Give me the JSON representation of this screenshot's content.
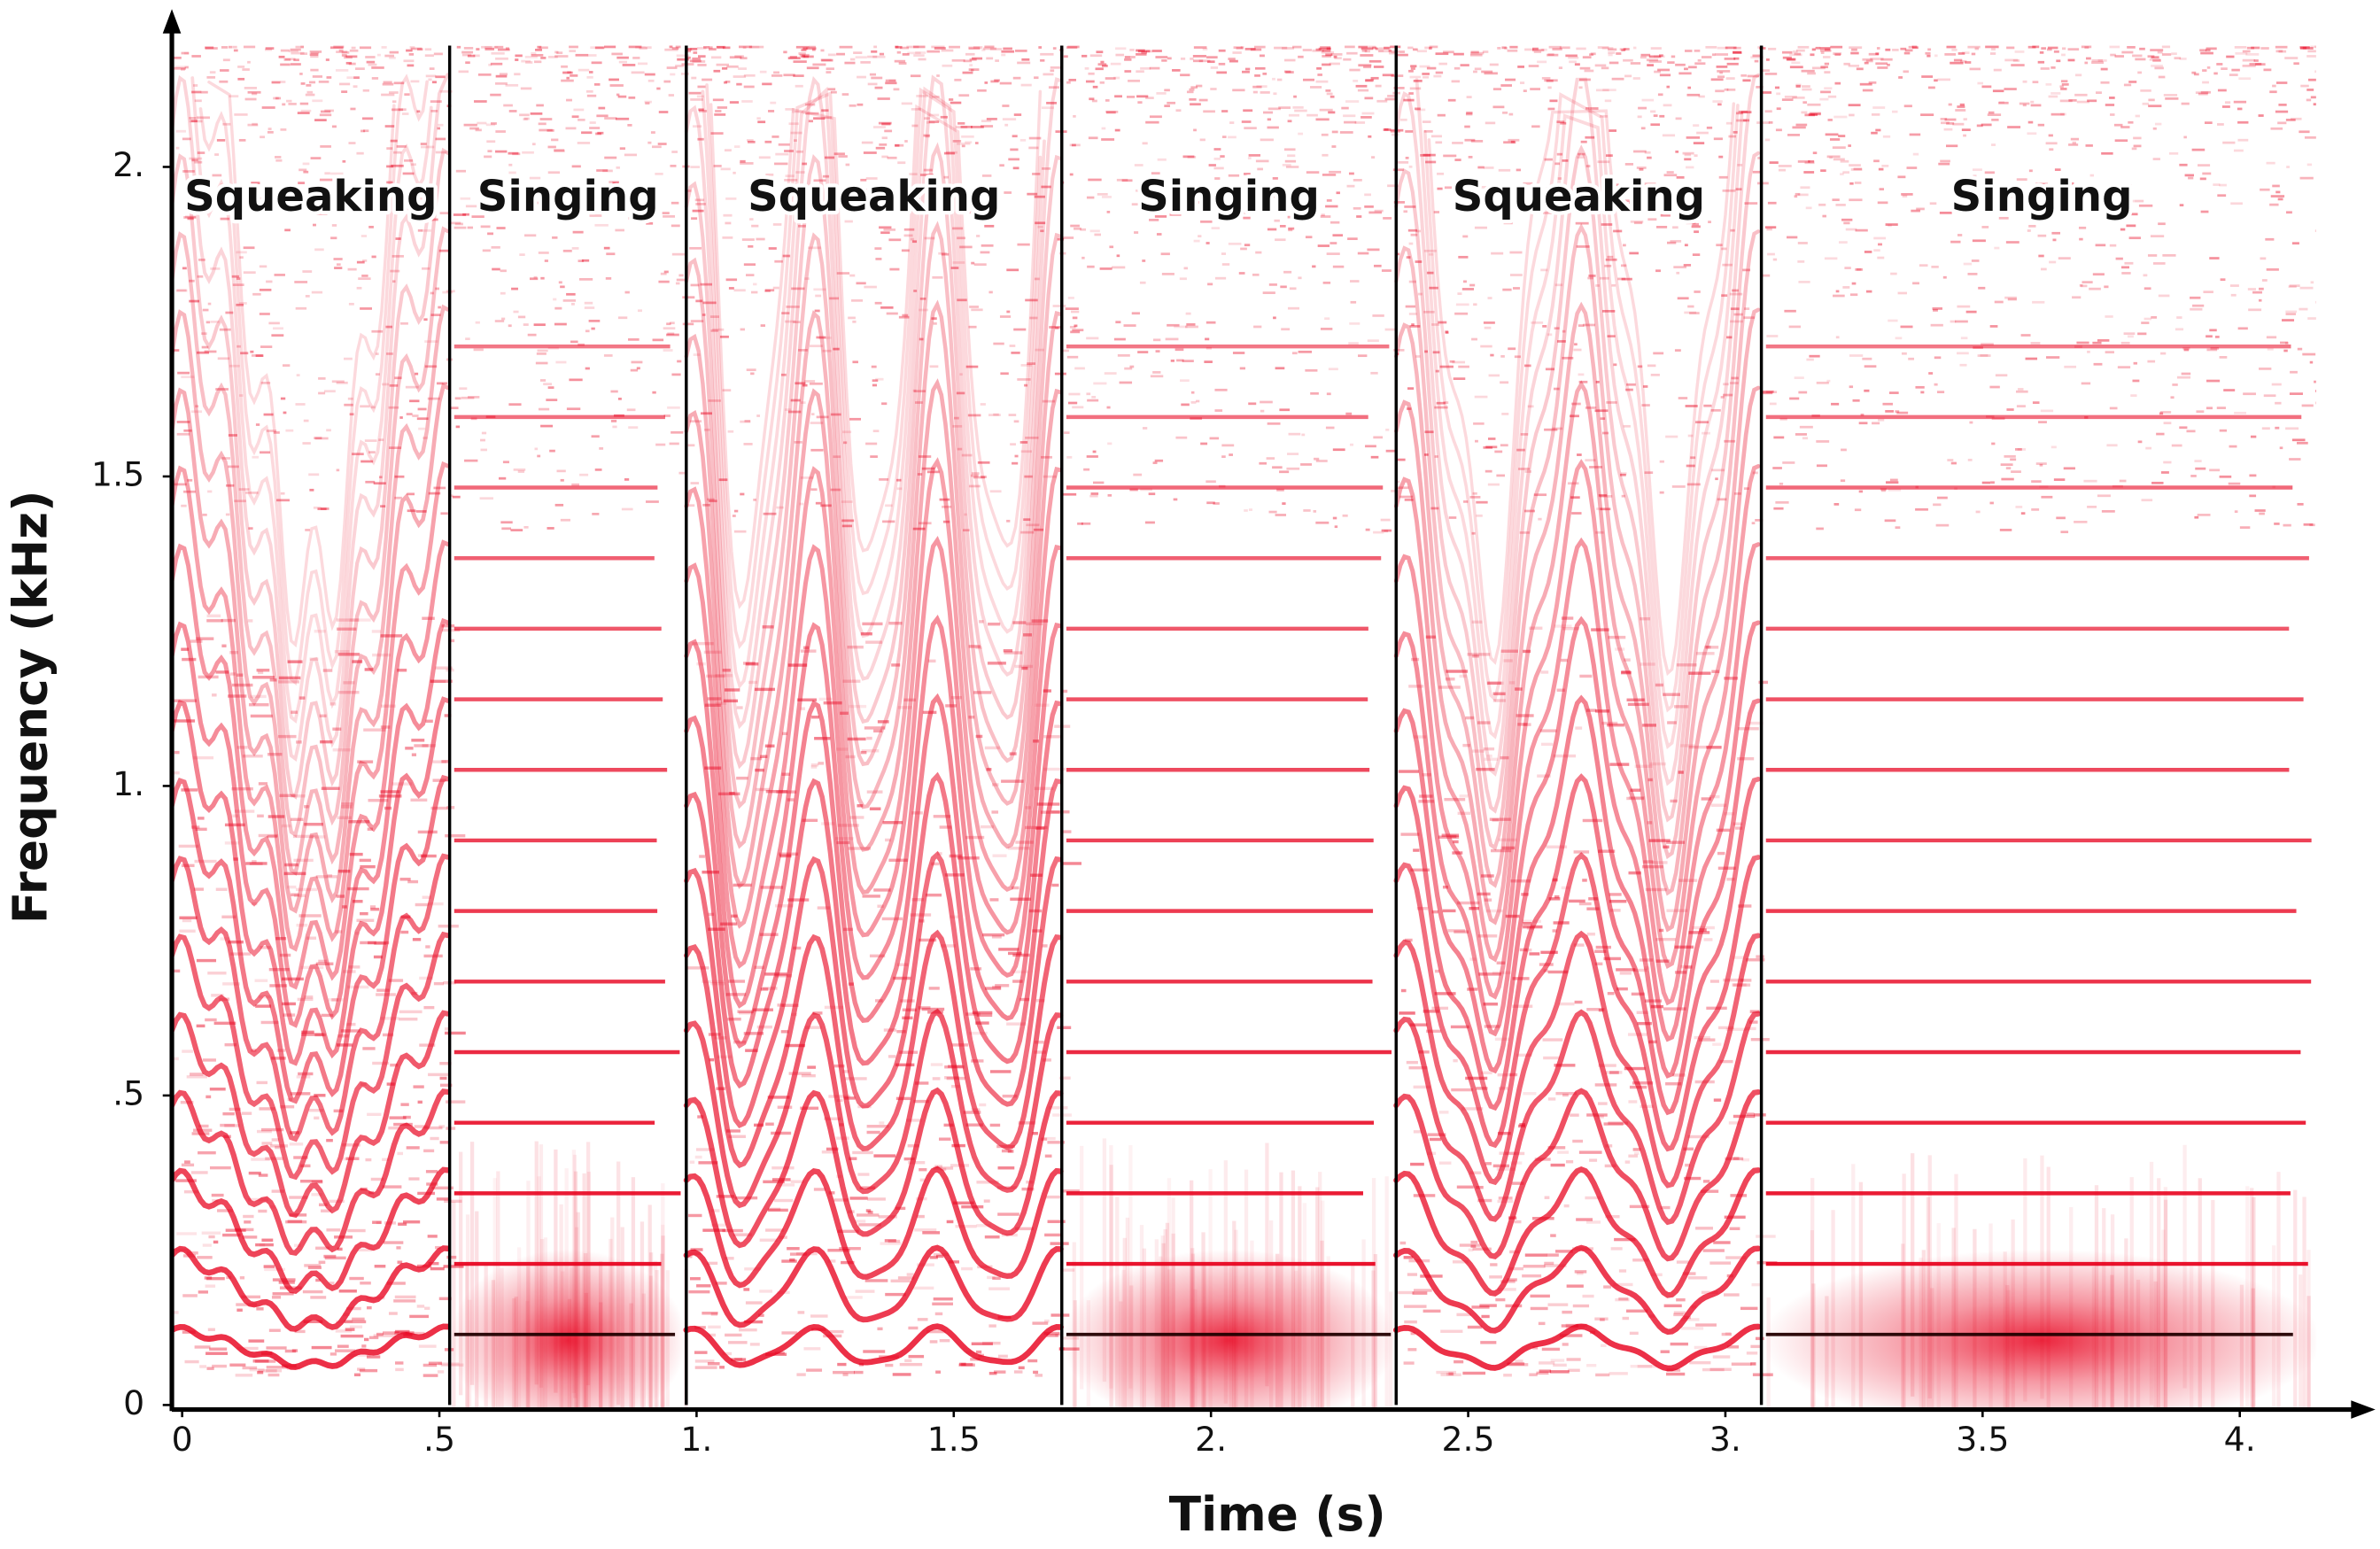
{
  "chart_data": {
    "type": "spectrogram",
    "xlabel": "Time (s)",
    "ylabel": "Frequency (kHz)",
    "xlim": [
      -0.02,
      4.24
    ],
    "ylim": [
      0,
      2.25
    ],
    "xticks": [
      0,
      {
        "value": 0.5,
        "label": ".5"
      },
      {
        "value": 1,
        "label": "1."
      },
      1.5,
      {
        "value": 2,
        "label": "2."
      },
      2.5,
      {
        "value": 3,
        "label": "3."
      },
      3.5,
      {
        "value": 4,
        "label": "4."
      }
    ],
    "yticks": [
      0,
      {
        "value": 0.5,
        "label": ".5"
      },
      {
        "value": 1,
        "label": "1."
      },
      1.5,
      {
        "value": 2,
        "label": "2."
      }
    ],
    "color": "#e8001c",
    "segments": [
      {
        "label": "Squeaking",
        "start": -0.02,
        "end": 0.52
      },
      {
        "label": "Singing",
        "start": 0.52,
        "end": 0.98
      },
      {
        "label": "Squeaking",
        "start": 0.98,
        "end": 1.71
      },
      {
        "label": "Singing",
        "start": 1.71,
        "end": 2.36
      },
      {
        "label": "Squeaking",
        "start": 2.36,
        "end": 3.07
      },
      {
        "label": "Singing",
        "start": 3.07,
        "end": 4.16
      }
    ],
    "harmonics_khz": [
      0.114,
      0.228,
      0.342,
      0.456,
      0.57,
      0.684,
      0.798,
      0.912,
      1.026,
      1.14,
      1.254,
      1.368,
      1.482,
      1.596,
      1.71
    ]
  }
}
